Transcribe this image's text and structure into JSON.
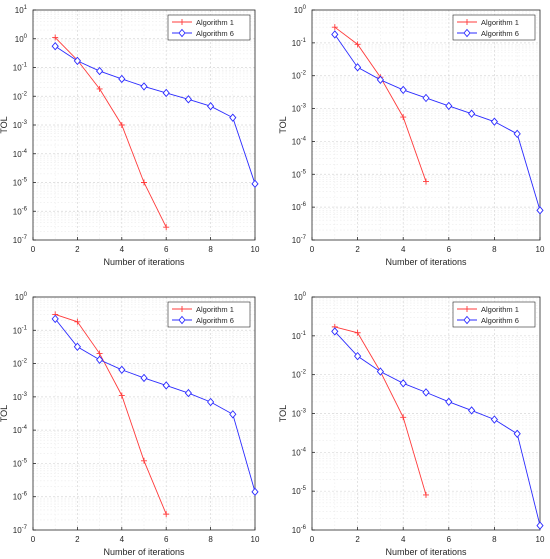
{
  "colors": {
    "algorithm_1": "#ff3b3b",
    "algorithm_6": "#2b2bff",
    "axis": "#262626",
    "grid_major": "#d8d8d8",
    "grid_minor": "#ececec"
  },
  "chart_data": [
    {
      "type": "line",
      "title": "",
      "xlabel": "Number of iterations",
      "ylabel": "TOL",
      "xlim": [
        0,
        10
      ],
      "ylim": [
        1e-07,
        10
      ],
      "yscale": "log",
      "x_ticks": [
        "0",
        "2",
        "4",
        "6",
        "8",
        "10"
      ],
      "y_ticks": [
        {
          "base": "10",
          "exp": "-7"
        },
        {
          "base": "10",
          "exp": "-6"
        },
        {
          "base": "10",
          "exp": "-5"
        },
        {
          "base": "10",
          "exp": "-4"
        },
        {
          "base": "10",
          "exp": "-3"
        },
        {
          "base": "10",
          "exp": "-2"
        },
        {
          "base": "10",
          "exp": "-1"
        },
        {
          "base": "10",
          "exp": "0"
        },
        {
          "base": "10",
          "exp": "1"
        }
      ],
      "grid": true,
      "legend_position": "top-right",
      "series": [
        {
          "name": "Algorithm 1",
          "marker": "plus",
          "color": "#ff3b3b",
          "x": [
            1,
            2,
            3,
            4,
            5,
            6
          ],
          "y": [
            1.1,
            0.18,
            0.018,
            0.001,
            1e-05,
            2.8e-07
          ]
        },
        {
          "name": "Algorithm 6",
          "marker": "diamond",
          "color": "#2b2bff",
          "x": [
            1,
            2,
            3,
            4,
            5,
            6,
            7,
            8,
            9,
            10
          ],
          "y": [
            0.55,
            0.17,
            0.075,
            0.04,
            0.022,
            0.013,
            0.0078,
            0.0045,
            0.0018,
            9e-06
          ]
        }
      ]
    },
    {
      "type": "line",
      "title": "",
      "xlabel": "Number of iterations",
      "ylabel": "TOL",
      "xlim": [
        0,
        10
      ],
      "ylim": [
        1e-07,
        1
      ],
      "yscale": "log",
      "x_ticks": [
        "0",
        "2",
        "4",
        "6",
        "8",
        "10"
      ],
      "y_ticks": [
        {
          "base": "10",
          "exp": "-7"
        },
        {
          "base": "10",
          "exp": "-6"
        },
        {
          "base": "10",
          "exp": "-5"
        },
        {
          "base": "10",
          "exp": "-4"
        },
        {
          "base": "10",
          "exp": "-3"
        },
        {
          "base": "10",
          "exp": "-2"
        },
        {
          "base": "10",
          "exp": "-1"
        },
        {
          "base": "10",
          "exp": "0"
        }
      ],
      "grid": true,
      "legend_position": "top-right",
      "series": [
        {
          "name": "Algorithm 1",
          "marker": "plus",
          "color": "#ff3b3b",
          "x": [
            1,
            2,
            3,
            4,
            5
          ],
          "y": [
            0.3,
            0.09,
            0.009,
            0.00055,
            6e-06
          ]
        },
        {
          "name": "Algorithm 6",
          "marker": "diamond",
          "color": "#2b2bff",
          "x": [
            1,
            2,
            3,
            4,
            5,
            6,
            7,
            8,
            9,
            10
          ],
          "y": [
            0.18,
            0.018,
            0.0075,
            0.0037,
            0.0021,
            0.0012,
            0.0007,
            0.0004,
            0.00017,
            8e-07
          ]
        }
      ]
    },
    {
      "type": "line",
      "title": "",
      "xlabel": "Number of iterations",
      "ylabel": "TOL",
      "xlim": [
        0,
        10
      ],
      "ylim": [
        1e-07,
        1
      ],
      "yscale": "log",
      "x_ticks": [
        "0",
        "2",
        "4",
        "6",
        "8",
        "10"
      ],
      "y_ticks": [
        {
          "base": "10",
          "exp": "-7"
        },
        {
          "base": "10",
          "exp": "-6"
        },
        {
          "base": "10",
          "exp": "-5"
        },
        {
          "base": "10",
          "exp": "-4"
        },
        {
          "base": "10",
          "exp": "-3"
        },
        {
          "base": "10",
          "exp": "-2"
        },
        {
          "base": "10",
          "exp": "-1"
        },
        {
          "base": "10",
          "exp": "0"
        }
      ],
      "grid": true,
      "legend_position": "top-right",
      "series": [
        {
          "name": "Algorithm 1",
          "marker": "plus",
          "color": "#ff3b3b",
          "x": [
            1,
            2,
            3,
            4,
            5,
            6
          ],
          "y": [
            0.3,
            0.18,
            0.02,
            0.0011,
            1.2e-05,
            3e-07
          ]
        },
        {
          "name": "Algorithm 6",
          "marker": "diamond",
          "color": "#2b2bff",
          "x": [
            1,
            2,
            3,
            4,
            5,
            6,
            7,
            8,
            9,
            10
          ],
          "y": [
            0.22,
            0.032,
            0.013,
            0.0065,
            0.0037,
            0.0022,
            0.0013,
            0.0007,
            0.0003,
            1.4e-06
          ]
        }
      ]
    },
    {
      "type": "line",
      "title": "",
      "xlabel": "Number of iterations",
      "ylabel": "TOL",
      "xlim": [
        0,
        10
      ],
      "ylim": [
        1e-06,
        1
      ],
      "yscale": "log",
      "x_ticks": [
        "0",
        "2",
        "4",
        "6",
        "8",
        "10"
      ],
      "y_ticks": [
        {
          "base": "10",
          "exp": "-6"
        },
        {
          "base": "10",
          "exp": "-5"
        },
        {
          "base": "10",
          "exp": "-4"
        },
        {
          "base": "10",
          "exp": "-3"
        },
        {
          "base": "10",
          "exp": "-2"
        },
        {
          "base": "10",
          "exp": "-1"
        },
        {
          "base": "10",
          "exp": "0"
        }
      ],
      "grid": true,
      "legend_position": "top-right",
      "series": [
        {
          "name": "Algorithm 1",
          "marker": "plus",
          "color": "#ff3b3b",
          "x": [
            1,
            2,
            3,
            4,
            5
          ],
          "y": [
            0.17,
            0.12,
            0.012,
            0.0008,
            8e-06
          ]
        },
        {
          "name": "Algorithm 6",
          "marker": "diamond",
          "color": "#2b2bff",
          "x": [
            1,
            2,
            3,
            4,
            5,
            6,
            7,
            8,
            9,
            10
          ],
          "y": [
            0.13,
            0.03,
            0.012,
            0.006,
            0.0035,
            0.002,
            0.0012,
            0.0007,
            0.0003,
            1.3e-06
          ]
        }
      ]
    }
  ]
}
